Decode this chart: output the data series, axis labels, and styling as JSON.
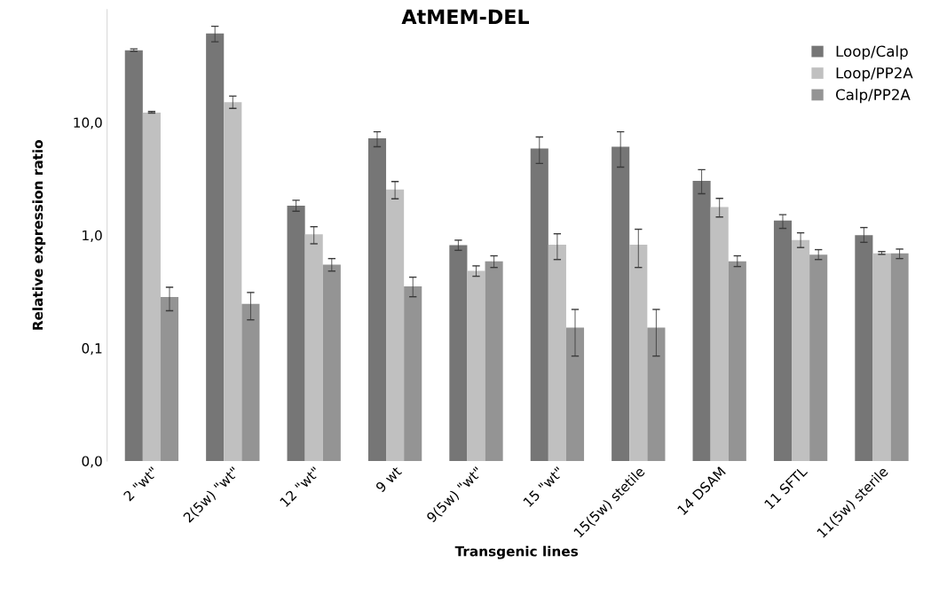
{
  "chart_data": {
    "type": "bar",
    "title": "AtMEM-DEL",
    "xlabel": "Transgenic lines",
    "ylabel": "Relative expression ratio",
    "categories": [
      "2 \"wt\"",
      "2(5w) \"wt\"",
      "12 \"wt\"",
      "9 wt",
      "9(5w) \"wt\"",
      "15 \"wt\"",
      "15(5w) stetile",
      "14 DSAM",
      "11 SFTL",
      "11(5w) sterile"
    ],
    "series": [
      {
        "name": "Loop/Calp",
        "color": "#767676",
        "values": [
          43.4,
          61.2,
          1.83,
          7.21,
          0.817,
          5.86,
          6.09,
          3.03,
          1.35,
          1.0
        ],
        "errors": [
          [
            42.7,
            44.8
          ],
          [
            51.8,
            71.1
          ],
          [
            1.63,
            2.04
          ],
          [
            6.09,
            8.26
          ],
          [
            0.735,
            0.904
          ],
          [
            4.32,
            7.43
          ],
          [
            4.01,
            8.26
          ],
          [
            2.33,
            3.81
          ],
          [
            1.15,
            1.52
          ],
          [
            0.865,
            1.17
          ]
        ]
      },
      {
        "name": "Loop/PP2A",
        "color": "#c0c0c0",
        "values": [
          12.2,
          15.1,
          1.02,
          2.54,
          0.484,
          0.823,
          0.823,
          1.78,
          0.908,
          0.69
        ],
        "errors": [
          [
            12.1,
            12.5
          ],
          [
            13.3,
            17.1
          ],
          [
            0.84,
            1.19
          ],
          [
            2.1,
            2.99
          ],
          [
            0.433,
            0.535
          ],
          [
            0.609,
            1.03
          ],
          [
            0.518,
            1.13
          ],
          [
            1.45,
            2.12
          ],
          [
            0.778,
            1.05
          ],
          [
            0.677,
            0.716
          ]
        ]
      },
      {
        "name": "Calp/PP2A",
        "color": "#949494",
        "values": [
          0.283,
          0.247,
          0.548,
          0.352,
          0.588,
          0.152,
          0.152,
          0.588,
          0.674,
          0.69
        ],
        "errors": [
          [
            0.214,
            0.346
          ],
          [
            0.178,
            0.311
          ],
          [
            0.481,
            0.621
          ],
          [
            0.285,
            0.425
          ],
          [
            0.518,
            0.657
          ],
          [
            0.085,
            0.22
          ],
          [
            0.085,
            0.22
          ],
          [
            0.528,
            0.657
          ],
          [
            0.609,
            0.745
          ],
          [
            0.621,
            0.754
          ]
        ]
      }
    ],
    "log": "y",
    "ylim": [
      0.01,
      100
    ],
    "yticks": [
      {
        "value": 0.01,
        "label": "0,0"
      },
      {
        "value": 0.1,
        "label": "0,1"
      },
      {
        "value": 1,
        "label": "1,0"
      },
      {
        "value": 10,
        "label": "10,0"
      }
    ],
    "grid": false,
    "legend": "top right"
  }
}
